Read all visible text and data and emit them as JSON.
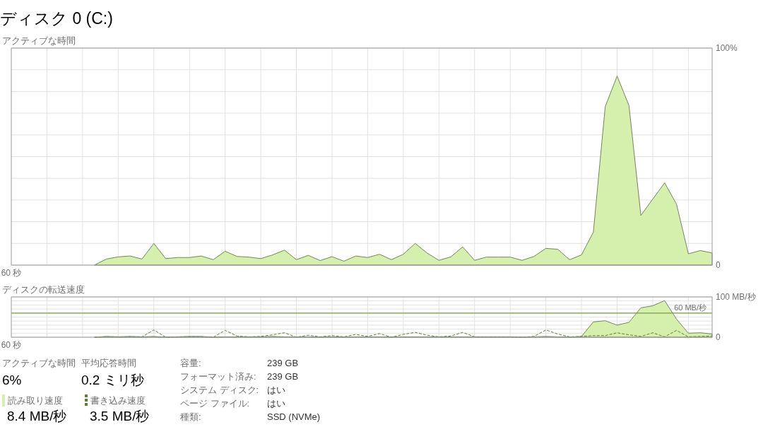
{
  "chart_data": [
    {
      "type": "area",
      "title": "ディスク 0 (C:)",
      "ylabel": "アクティブな時間",
      "categories": [
        "60 秒",
        null,
        null,
        null,
        null,
        null,
        null,
        null,
        null,
        null,
        null,
        null,
        null,
        null,
        null,
        null,
        null,
        null,
        null,
        null,
        null,
        null,
        null,
        null,
        null,
        null,
        null,
        null,
        null,
        null,
        null,
        null,
        null,
        null,
        null,
        null,
        null,
        null,
        null,
        null,
        null,
        null,
        null,
        null,
        null,
        null,
        null,
        null,
        null,
        null,
        null,
        null,
        null,
        null,
        null,
        null,
        null,
        null,
        null,
        null
      ],
      "series": [
        {
          "color": "#d4f0ac",
          "values": [
            null,
            null,
            null,
            null,
            null,
            null,
            null,
            0,
            2.8,
            3.8,
            4.2,
            2.8,
            10,
            3,
            3.5,
            3.5,
            4.2,
            2.5,
            6.4,
            4,
            3.7,
            3,
            4.7,
            6.9,
            2.5,
            4.5,
            2.1,
            3.9,
            1.8,
            4.2,
            3.5,
            5,
            2.5,
            5,
            10,
            5.6,
            2.2,
            3.8,
            8.4,
            2.2,
            3.7,
            3.7,
            3.7,
            2.2,
            4,
            7.7,
            7.3,
            2.5,
            4.7,
            15.2,
            73,
            87.1,
            73.5,
            22.9,
            30.4,
            37.9,
            28.1,
            5.2,
            6.7,
            5.6
          ]
        }
      ],
      "ylim": [
        0,
        100
      ],
      "yticks": [
        {
          "value": 0,
          "label": "0"
        },
        {
          "value": 10,
          "label": null
        },
        {
          "value": 20,
          "label": null
        },
        {
          "value": 30,
          "label": null
        },
        {
          "value": 40,
          "label": null
        },
        {
          "value": 50,
          "label": null
        },
        {
          "value": 60,
          "label": null
        },
        {
          "value": 70,
          "label": null
        },
        {
          "value": 80,
          "label": null
        },
        {
          "value": 90,
          "label": null
        },
        {
          "value": 100,
          "label": "100%"
        }
      ],
      "grid": true
    },
    {
      "type": "area",
      "ylabel": "ディスクの転送速度",
      "categories": [
        "60 秒",
        null,
        null,
        null,
        null,
        null,
        null,
        null,
        null,
        null,
        null,
        null,
        null,
        null,
        null,
        null,
        null,
        null,
        null,
        null,
        null,
        null,
        null,
        null,
        null,
        null,
        null,
        null,
        null,
        null,
        null,
        null,
        null,
        null,
        null,
        null,
        null,
        null,
        null,
        null,
        null,
        null,
        null,
        null,
        null,
        null,
        null,
        null,
        null,
        null,
        null,
        null,
        null,
        null,
        null,
        null,
        null,
        null,
        null,
        null
      ],
      "series": [
        {
          "name": "読み取り速度",
          "color": "#d4f0ac",
          "values": [
            null,
            null,
            null,
            null,
            null,
            null,
            null,
            0,
            2,
            1,
            2,
            1,
            2,
            0,
            1,
            2,
            2,
            0,
            1,
            1,
            1,
            1,
            2,
            1,
            1,
            1,
            0,
            1,
            0,
            1,
            1,
            1,
            1,
            1,
            1,
            1,
            1,
            1,
            1,
            1,
            1,
            1,
            1,
            0,
            1,
            2,
            1,
            0,
            2,
            38,
            41,
            30,
            37,
            73,
            78,
            91,
            45,
            10,
            11,
            8
          ]
        },
        {
          "name": "書き込み速度",
          "type": "line",
          "line_style": "dashed",
          "color": "#5f7f36",
          "values": [
            null,
            null,
            null,
            null,
            null,
            null,
            null,
            0,
            1,
            1,
            1,
            1,
            18,
            0,
            1,
            1,
            1,
            0,
            17,
            3,
            1,
            2,
            6,
            11,
            0,
            5,
            1,
            4,
            1,
            7,
            2,
            9,
            0,
            7,
            12,
            5,
            1,
            3,
            12,
            1,
            1,
            1,
            1,
            0,
            2,
            18,
            8,
            1,
            2,
            4,
            4,
            11,
            6,
            2,
            11,
            1,
            17,
            1,
            2,
            3
          ]
        }
      ],
      "ylim": [
        0,
        100
      ],
      "yticks": [
        {
          "value": 0,
          "label": "0"
        },
        {
          "value": 10,
          "label": null
        },
        {
          "value": 20,
          "label": null
        },
        {
          "value": 30,
          "label": null
        },
        {
          "value": 40,
          "label": null
        },
        {
          "value": 50,
          "label": null
        },
        {
          "value": 60,
          "label": null
        },
        {
          "value": 70,
          "label": null
        },
        {
          "value": 80,
          "label": null
        },
        {
          "value": 90,
          "label": null
        },
        {
          "value": 100,
          "label": "100 MB/秒"
        }
      ],
      "ref_lines": [
        {
          "axis": "y",
          "value": 60,
          "label": "60 MB/秒",
          "color": "#7d9a48"
        }
      ],
      "grid": true,
      "legend": "bottom left"
    },
    {
      "type": "other",
      "annotations": [
        "アクティブな時間",
        "6%",
        "平均応答時間",
        "0.2 ミリ秒",
        "8.4 MB/秒",
        "3.5 MB/秒",
        "容量:",
        "239 GB",
        "フォーマット済み:",
        "239 GB",
        "システム ディスク:",
        "はい",
        "ページ ファイル:",
        "はい",
        "種類:",
        "SSD (NVMe)"
      ]
    }
  ]
}
